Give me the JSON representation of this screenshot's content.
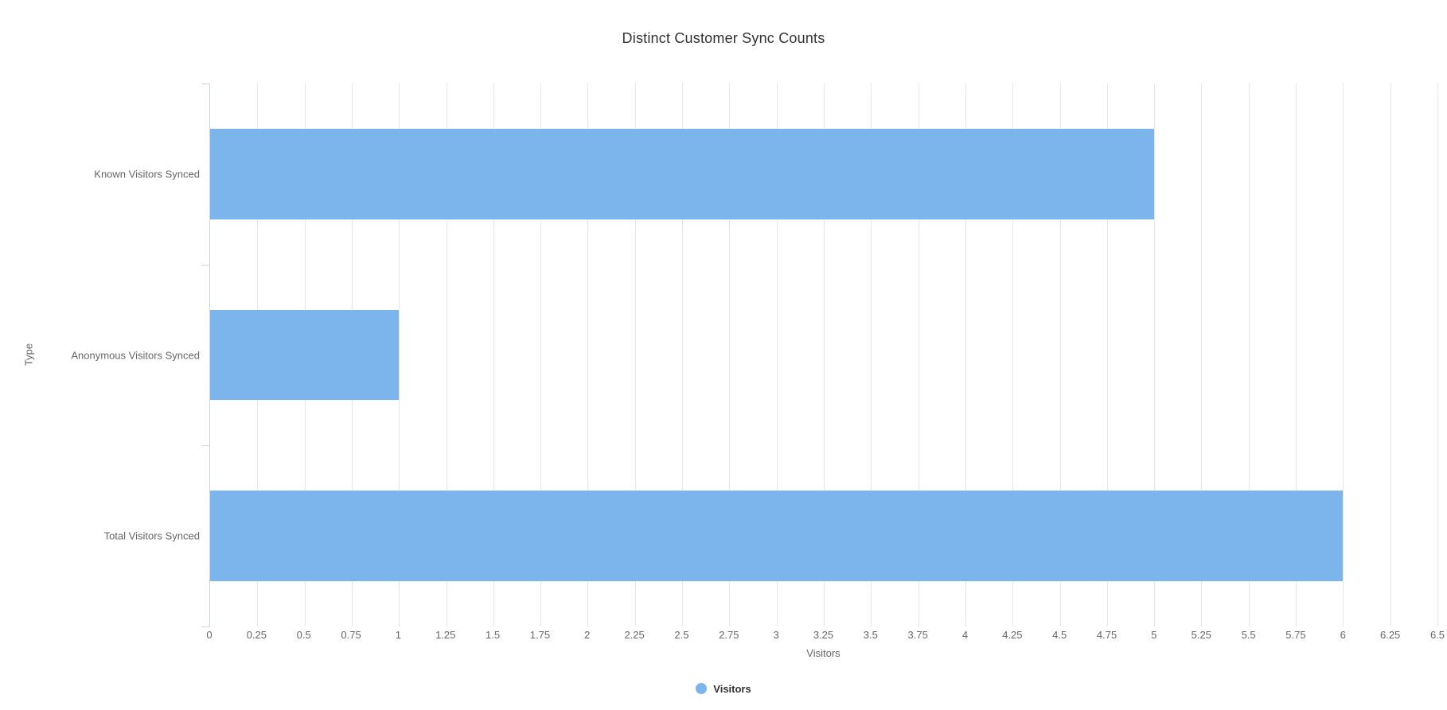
{
  "chart_data": {
    "type": "bar",
    "orientation": "horizontal",
    "title": "Distinct Customer Sync Counts",
    "categories": [
      "Known Visitors Synced",
      "Anonymous Visitors Synced",
      "Total Visitors Synced"
    ],
    "series": [
      {
        "name": "Visitors",
        "values": [
          5,
          1,
          6
        ]
      }
    ],
    "xlabel": "Visitors",
    "ylabel": "Type",
    "xlim": [
      0,
      6.5
    ],
    "xtick_step": 0.25,
    "xticks": [
      "0",
      "0.25",
      "0.5",
      "0.75",
      "1",
      "1.25",
      "1.5",
      "1.75",
      "2",
      "2.25",
      "2.5",
      "2.75",
      "3",
      "3.25",
      "3.5",
      "3.75",
      "4",
      "4.25",
      "4.5",
      "4.75",
      "5",
      "5.25",
      "5.5",
      "5.75",
      "6",
      "6.25",
      "6.5"
    ],
    "grid": true,
    "legend": {
      "position": "bottom",
      "items": [
        {
          "label": "Visitors",
          "color": "#7cb5ec"
        }
      ]
    },
    "colors": {
      "bar": "#7cb5ec",
      "gridline": "#e6e6e6",
      "axis_line": "#ccd6eb",
      "title_text": "#333333",
      "label_text": "#666666",
      "legend_text": "#333333"
    }
  }
}
